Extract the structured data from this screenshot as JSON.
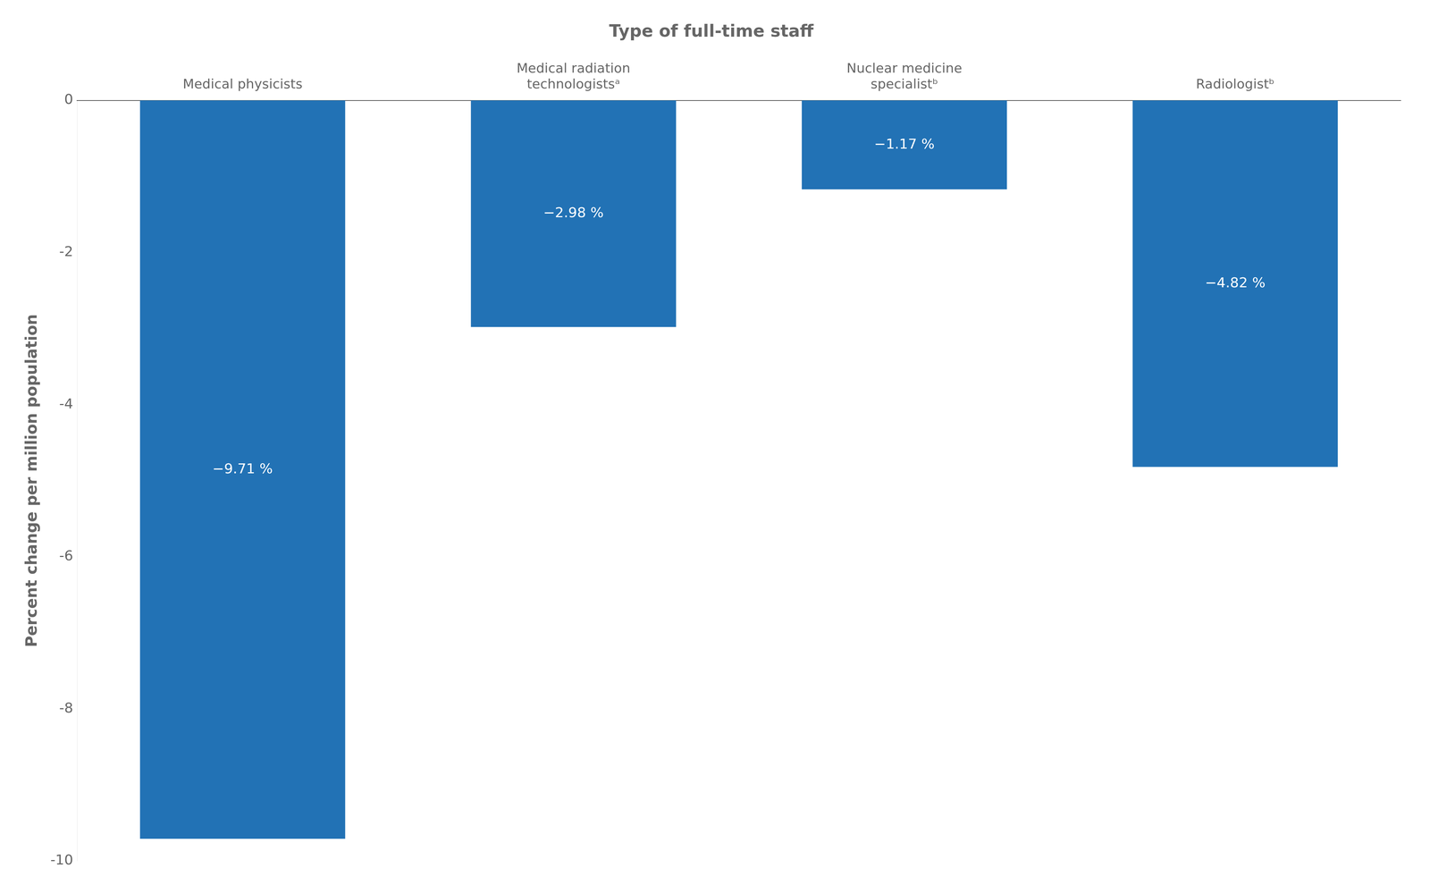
{
  "chart_data": {
    "type": "bar",
    "title": "Type of full-time staff",
    "ylabel": "Percent change per million population",
    "categories": [
      "Medical physicists",
      "Medical radiation\ntechnologistsᵃ",
      "Nuclear medicine\nspecialistᵇ",
      "Radiologistᵇ"
    ],
    "values": [
      -9.71,
      -2.98,
      -1.17,
      -4.82
    ],
    "value_labels": [
      "−9.71 %",
      "−2.98 %",
      "−1.17 %",
      "−4.82 %"
    ],
    "color": "#2272B5",
    "ylim": [
      -10,
      0
    ],
    "yticks": [
      0,
      -2,
      -4,
      -6,
      -8,
      -10
    ],
    "grid": false,
    "data_labels": true
  }
}
